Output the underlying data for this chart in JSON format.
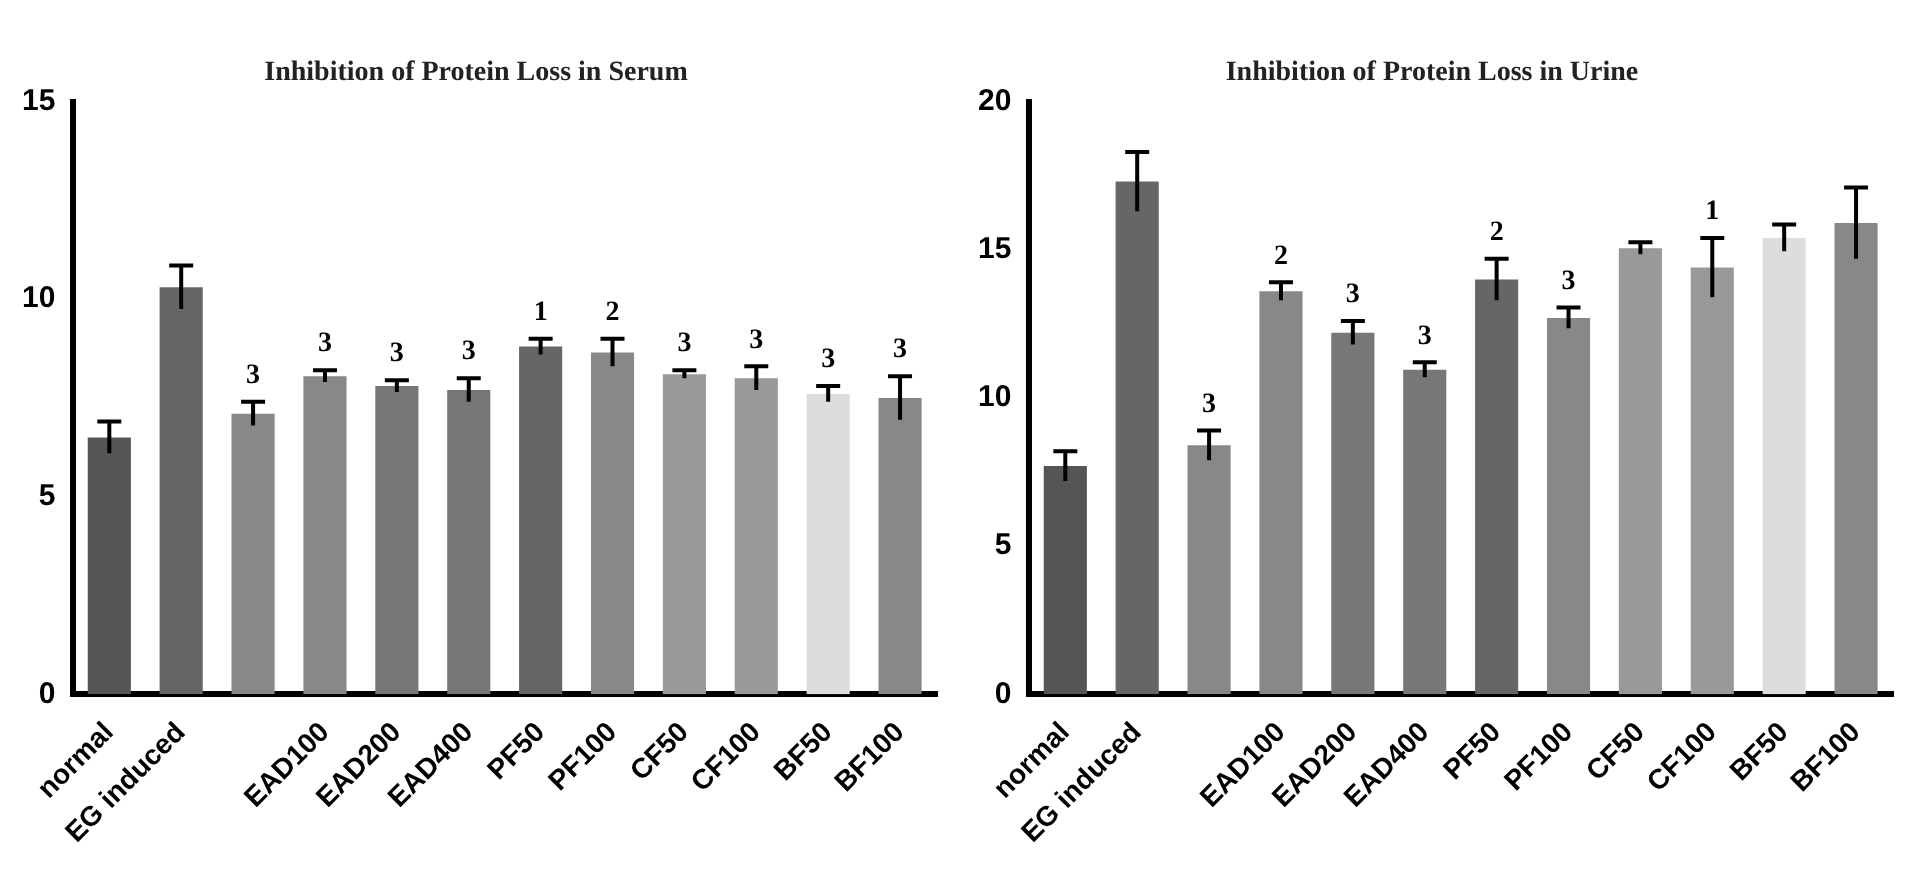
{
  "chart_data": [
    {
      "type": "bar",
      "title": "Inhibition of Protein Loss in Serum",
      "categories": [
        "normal",
        "EG induced",
        null,
        "EAD100",
        "EAD200",
        "EAD400",
        "PF50",
        "PF100",
        "CF50",
        "CF100",
        "BF50",
        "BF100"
      ],
      "values": [
        6.5,
        10.3,
        7.1,
        8.05,
        7.8,
        7.7,
        8.8,
        8.65,
        8.1,
        8.0,
        7.6,
        7.5
      ],
      "errors": [
        0.4,
        0.55,
        0.3,
        0.15,
        0.15,
        0.3,
        0.2,
        0.35,
        0.1,
        0.3,
        0.2,
        0.55
      ],
      "annotations": [
        {
          "text": "3",
          "y": 7.4
        },
        {
          "text": "3",
          "x": "EAD100",
          "y": 8.2
        },
        {
          "text": "3",
          "x": "EAD200",
          "y": 7.95
        },
        {
          "text": "3",
          "x": "EAD400",
          "y": 8.0
        },
        {
          "text": "1",
          "x": "PF50",
          "y": 9.0
        },
        {
          "text": "2",
          "x": "PF100",
          "y": 9.0
        },
        {
          "text": "3",
          "x": "CF50",
          "y": 8.2
        },
        {
          "text": "3",
          "x": "CF100",
          "y": 8.3
        },
        {
          "text": "3",
          "x": "BF50",
          "y": 7.8
        },
        {
          "text": "3",
          "x": "BF100",
          "y": 8.05
        }
      ],
      "colors": [
        "#555555",
        "#666666",
        "#888888",
        "#888888",
        "#777777",
        "#777777",
        "#666666",
        "#888888",
        "#999999",
        "#999999",
        "#dddddd",
        "#888888"
      ],
      "ylim": [
        0,
        15
      ],
      "yticks": [
        0,
        5,
        10,
        15
      ],
      "grid": false,
      "legend": false
    },
    {
      "type": "bar",
      "title": "Inhibition of Protein Loss in Urine",
      "categories": [
        "normal",
        "EG induced",
        null,
        "EAD100",
        "EAD200",
        "EAD400",
        "PF50",
        "PF100",
        "CF50",
        "CF100",
        "BF50",
        "BF100"
      ],
      "values": [
        7.7,
        17.3,
        8.4,
        13.6,
        12.2,
        10.95,
        14.0,
        12.7,
        15.05,
        14.4,
        15.4,
        15.9
      ],
      "errors": [
        0.5,
        1.0,
        0.5,
        0.3,
        0.4,
        0.25,
        0.7,
        0.35,
        0.2,
        1.0,
        0.45,
        1.2
      ],
      "annotations": [
        {
          "text": "3",
          "y": 8.9
        },
        {
          "text": "2",
          "x": "EAD100",
          "y": 13.9
        },
        {
          "text": "3",
          "x": "EAD200",
          "y": 12.6
        },
        {
          "text": "3",
          "x": "EAD400",
          "y": 11.2
        },
        {
          "text": "2",
          "x": "PF50",
          "y": 14.7
        },
        {
          "text": "3",
          "x": "PF100",
          "y": 13.05
        },
        {
          "text": "1",
          "x": "CF100",
          "y": 15.4
        }
      ],
      "colors": [
        "#555555",
        "#666666",
        "#888888",
        "#888888",
        "#777777",
        "#777777",
        "#666666",
        "#888888",
        "#999999",
        "#999999",
        "#dddddd",
        "#888888"
      ],
      "ylim": [
        0,
        20
      ],
      "yticks": [
        0,
        5,
        10,
        15,
        20
      ],
      "grid": false,
      "legend": false
    }
  ]
}
